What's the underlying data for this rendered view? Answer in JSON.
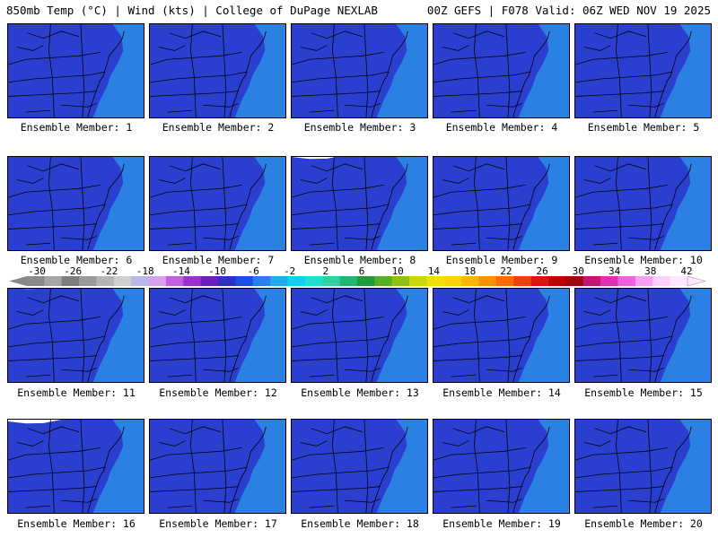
{
  "header": {
    "left": "850mb Temp (°C) | Wind (kts) | College of DuPage NEXLAB",
    "right": "00Z GEFS | F078 Valid: 06Z WED NOV 19 2025"
  },
  "legend": {
    "ticks": [
      "-30",
      "-26",
      "-22",
      "-18",
      "-14",
      "-10",
      "-6",
      "-2",
      "2",
      "6",
      "10",
      "14",
      "18",
      "22",
      "26",
      "30",
      "34",
      "38",
      "42"
    ],
    "colors": [
      "#8a8a8a",
      "#a6a6a6",
      "#7e7e7e",
      "#9a9a9a",
      "#b5b5b5",
      "#cfcfcf",
      "#b8b8e6",
      "#d8a0e8",
      "#c060e0",
      "#9b2fd0",
      "#6a1fc0",
      "#3030c0",
      "#1c4fe0",
      "#2a7ff0",
      "#25a8f5",
      "#10d0f0",
      "#1fe0d0",
      "#30d0a0",
      "#20b870",
      "#1e9a40",
      "#58b020",
      "#90c010",
      "#c8d800",
      "#f0e000",
      "#ffd200",
      "#ffb400",
      "#ff9000",
      "#ff6a00",
      "#f04000",
      "#e01010",
      "#c00000",
      "#a00010",
      "#c01870",
      "#e030b0",
      "#f060e0",
      "#f8a0f0",
      "#ffd0ff",
      "#ffe8ff"
    ]
  },
  "members": [
    {
      "label": "Ensemble Member: 1",
      "warm": 0.05
    },
    {
      "label": "Ensemble Member: 2",
      "warm": 0.0
    },
    {
      "label": "Ensemble Member: 3",
      "warm": 0.15
    },
    {
      "label": "Ensemble Member: 4",
      "warm": 0.1
    },
    {
      "label": "Ensemble Member: 5",
      "warm": 0.25
    },
    {
      "label": "Ensemble Member: 6",
      "warm": -0.25
    },
    {
      "label": "Ensemble Member: 7",
      "warm": -0.15
    },
    {
      "label": "Ensemble Member: 8",
      "warm": -0.35
    },
    {
      "label": "Ensemble Member: 9",
      "warm": -0.05
    },
    {
      "label": "Ensemble Member: 10",
      "warm": 0.2
    },
    {
      "label": "Ensemble Member: 11",
      "warm": -0.3
    },
    {
      "label": "Ensemble Member: 12",
      "warm": -0.1
    },
    {
      "label": "Ensemble Member: 13",
      "warm": -0.05
    },
    {
      "label": "Ensemble Member: 14",
      "warm": 0.05
    },
    {
      "label": "Ensemble Member: 15",
      "warm": 0.1
    },
    {
      "label": "Ensemble Member: 16",
      "warm": -0.4
    },
    {
      "label": "Ensemble Member: 17",
      "warm": 0.3
    },
    {
      "label": "Ensemble Member: 18",
      "warm": 0.35
    },
    {
      "label": "Ensemble Member: 19",
      "warm": -0.05
    },
    {
      "label": "Ensemble Member: 20",
      "warm": -0.2
    }
  ]
}
